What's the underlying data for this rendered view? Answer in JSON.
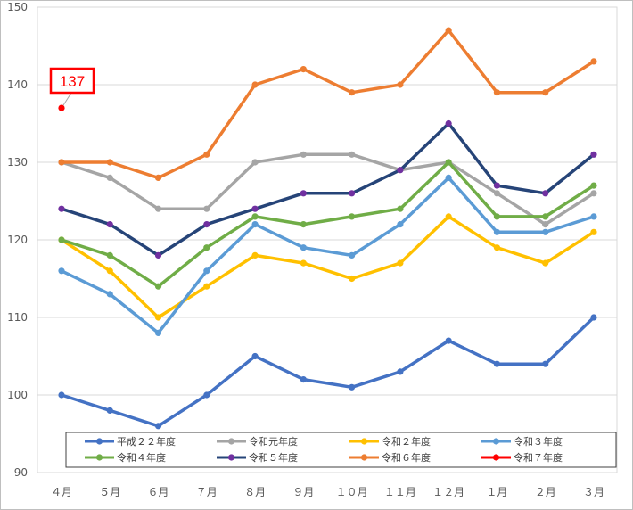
{
  "chart_data": {
    "type": "line",
    "title": "",
    "xlabel": "",
    "ylabel": "",
    "categories": [
      "４月",
      "５月",
      "６月",
      "７月",
      "８月",
      "９月",
      "１０月",
      "１１月",
      "１２月",
      "１月",
      "２月",
      "３月"
    ],
    "ylim": [
      90,
      150
    ],
    "yticks": [
      90,
      100,
      110,
      120,
      130,
      140,
      150
    ],
    "grid": true,
    "legend_position": "bottom-inside",
    "series": [
      {
        "name": "平成２２年度",
        "color": "#4472c4",
        "values": [
          100,
          98,
          96,
          100,
          105,
          102,
          101,
          103,
          107,
          104,
          104,
          110
        ]
      },
      {
        "name": "令和元年度",
        "color": "#a5a5a5",
        "values": [
          130,
          128,
          124,
          124,
          130,
          131,
          131,
          129,
          130,
          126,
          122,
          126
        ]
      },
      {
        "name": "令和２年度",
        "color": "#ffc000",
        "values": [
          120,
          116,
          110,
          114,
          118,
          117,
          115,
          117,
          123,
          119,
          117,
          121
        ]
      },
      {
        "name": "令和３年度",
        "color": "#5b9bd5",
        "values": [
          116,
          113,
          108,
          116,
          122,
          119,
          118,
          122,
          128,
          121,
          121,
          123
        ]
      },
      {
        "name": "令和４年度",
        "color": "#70ad47",
        "values": [
          120,
          118,
          114,
          119,
          123,
          122,
          123,
          124,
          130,
          123,
          123,
          127
        ]
      },
      {
        "name": "令和５年度",
        "color": "#264478",
        "marker_color": "#7030a0",
        "values": [
          124,
          122,
          118,
          122,
          124,
          126,
          126,
          129,
          135,
          127,
          126,
          131
        ]
      },
      {
        "name": "令和６年度",
        "color": "#ed7d31",
        "values": [
          130,
          130,
          128,
          131,
          140,
          142,
          139,
          140,
          147,
          139,
          139,
          143
        ]
      },
      {
        "name": "令和７年度",
        "color": "#ff0000",
        "values": [
          137,
          null,
          null,
          null,
          null,
          null,
          null,
          null,
          null,
          null,
          null,
          null
        ]
      }
    ],
    "annotations": [
      {
        "text": "137",
        "series": "令和７年度",
        "category": "４月",
        "value": 137,
        "color": "#ff0000"
      }
    ]
  }
}
